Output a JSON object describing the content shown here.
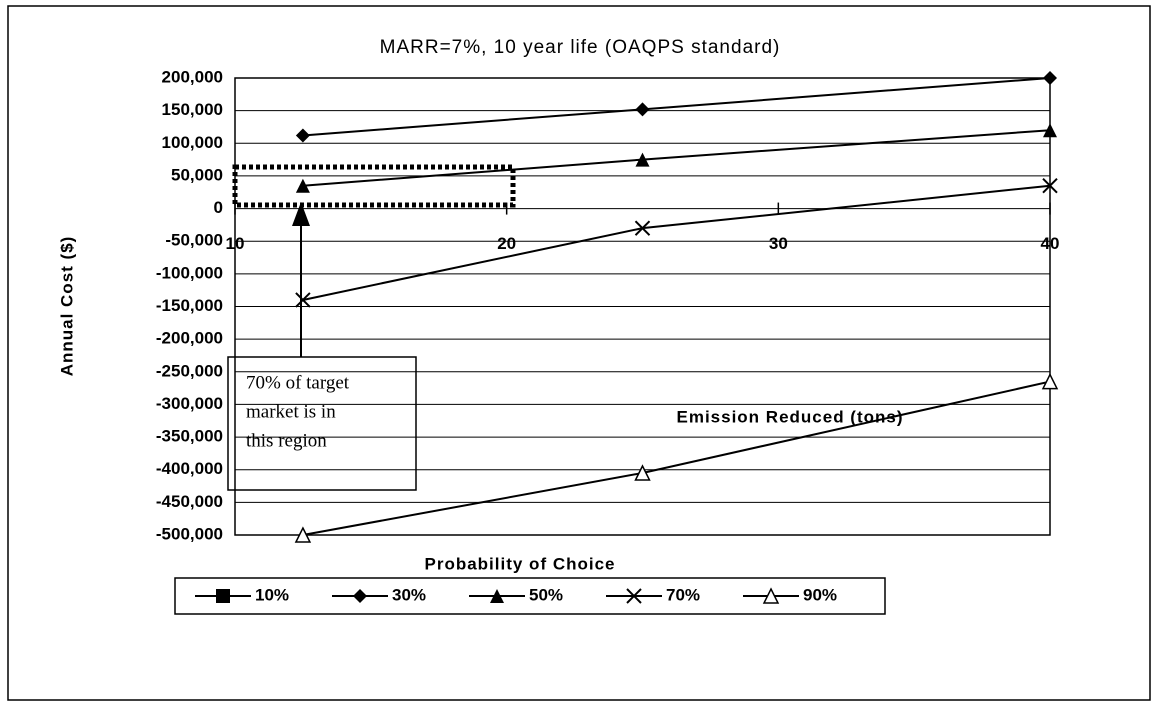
{
  "chart_data": {
    "type": "line",
    "title": "MARR=7%, 10 year life  (OAQPS  standard)",
    "y_label": "Annual Cost ($)",
    "x_label": "Emission Reduced (tons)",
    "x_caption": "Probability of Choice",
    "annotation": [
      "70% of target",
      "market is in",
      "this region"
    ],
    "x": [
      12.5,
      25,
      40
    ],
    "xlim": [
      10,
      40
    ],
    "xticks": [
      10,
      20,
      30,
      40
    ],
    "ylim": [
      -500000,
      200000
    ],
    "yticks": [
      {
        "value": 200000,
        "label": "200,000"
      },
      {
        "value": 150000,
        "label": "150,000"
      },
      {
        "value": 100000,
        "label": "100,000"
      },
      {
        "value": 50000,
        "label": "50,000"
      },
      0,
      {
        "value": -50000,
        "label": "-50,000"
      },
      {
        "value": -100000,
        "label": "-100,000"
      },
      {
        "value": -150000,
        "label": "-150,000"
      },
      {
        "value": -200000,
        "label": "-200,000"
      },
      {
        "value": -250000,
        "label": "-250,000"
      },
      {
        "value": -300000,
        "label": "-300,000"
      },
      {
        "value": -350000,
        "label": "-350,000"
      },
      {
        "value": -400000,
        "label": "-400,000"
      },
      {
        "value": -450000,
        "label": "-450,000"
      },
      {
        "value": -500000,
        "label": "-500,000"
      }
    ],
    "grid": true,
    "legend": "bottom",
    "series": [
      {
        "name": "10%",
        "color": "#000000",
        "marker": "square",
        "values": [
          null,
          null,
          null
        ]
      },
      {
        "name": "30%",
        "color": "#000000",
        "marker": "diamond",
        "values": [
          112000,
          152000,
          200000
        ]
      },
      {
        "name": "50%",
        "color": "#000000",
        "marker": "triangle",
        "values": [
          35000,
          75000,
          120000
        ]
      },
      {
        "name": "70%",
        "color": "#000000",
        "marker": "x",
        "values": [
          -140000,
          -30000,
          35000
        ]
      },
      {
        "name": "90%",
        "color": "#000000",
        "marker": "open-triangle",
        "values": [
          -500000,
          -405000,
          -265000
        ]
      }
    ]
  }
}
